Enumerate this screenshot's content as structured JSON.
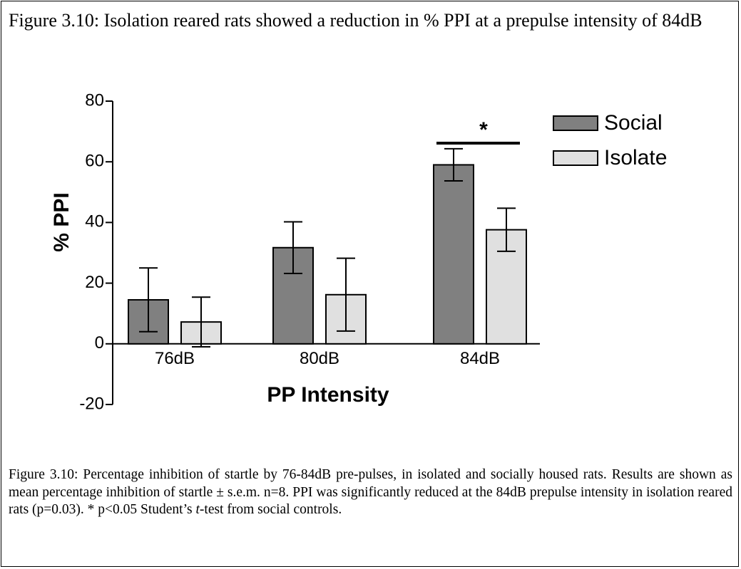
{
  "heading": "Figure 3.10: Isolation reared rats showed a reduction in % PPI at a prepulse intensity of 84dB",
  "caption": [
    "Figure 3.10: Percentage inhibition of startle by 76-84dB pre-pulses, in isolated and socially housed rats. Results are shown as mean percentage inhibition of startle ± s.e.m. n=8. PPI was significantly reduced at the 84dB prepulse intensity in isolation reared rats (p=0.03). * p<0.05 Student’s ",
    "t",
    "-test from social controls."
  ],
  "chart_data": {
    "type": "bar",
    "x_label": "PP Intensity",
    "y_label": "% PPI",
    "categories": [
      "76dB",
      "80dB",
      "84dB"
    ],
    "series": [
      {
        "name": "Social",
        "color": "#808080",
        "values": [
          14.5,
          31.7,
          59
        ],
        "errors": [
          10.5,
          8.5,
          5.3
        ]
      },
      {
        "name": "Isolate",
        "color": "#e0e0e0",
        "values": [
          7.2,
          16.2,
          37.6
        ],
        "errors": [
          8.2,
          12,
          7.1
        ]
      }
    ],
    "ylim": [
      -20,
      80
    ],
    "yticks": [
      -20,
      0,
      20,
      40,
      60,
      80
    ],
    "annotation": "*",
    "legend": "upper right"
  }
}
